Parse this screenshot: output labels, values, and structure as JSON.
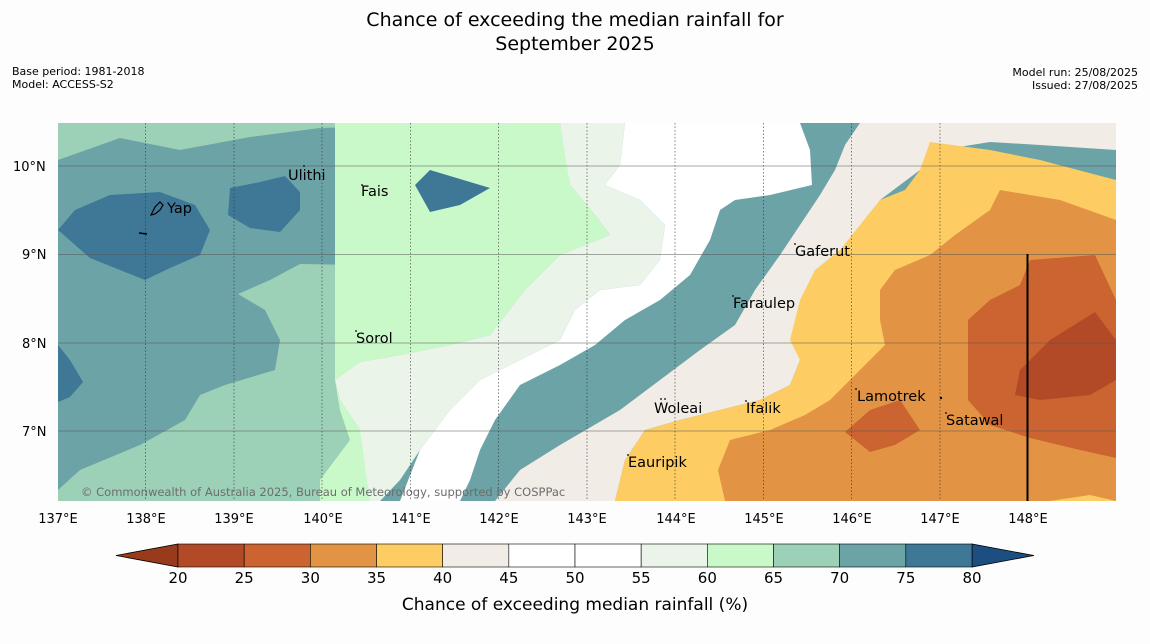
{
  "title_line1": "Chance of exceeding the median rainfall for",
  "title_line2": "September 2025",
  "base_period": "Base period: 1981-2018",
  "model": "Model: ACCESS-S2",
  "model_run": "Model run: 25/08/2025",
  "issued": "Issued: 27/08/2025",
  "copyright": "© Commonwealth of Australia 2025, Bureau of Meteorology, supported by COSPPac",
  "map": {
    "lon_labels": [
      "137°E",
      "138°E",
      "139°E",
      "140°E",
      "141°E",
      "142°E",
      "143°E",
      "144°E",
      "145°E",
      "146°E",
      "147°E",
      "148°E"
    ],
    "lat_labels": [
      "10°N",
      "9°N",
      "8°N",
      "7°N"
    ],
    "places": [
      "Ulithi",
      "Fais",
      "Yap",
      "Gaferut",
      "Faraulep",
      "Sorol",
      "Lamotrek",
      "Woleai",
      "Ifalik",
      "Satawal",
      "Eauripik"
    ]
  },
  "colorbar": {
    "title": "Chance of exceeding median rainfall (%)",
    "ticks": [
      "20",
      "25",
      "30",
      "35",
      "40",
      "45",
      "50",
      "55",
      "60",
      "65",
      "70",
      "75",
      "80"
    ],
    "colors": [
      "#b24a27",
      "#cb6431",
      "#e29444",
      "#fdcc63",
      "#f1ece6",
      "#ffffff",
      "#ffffff",
      "#eaf4e8",
      "#caf9c9",
      "#9dd1b7",
      "#6ba3a6",
      "#3f7896"
    ],
    "extend_low_color": "#9a3a1c",
    "extend_high_color": "#1c4e82"
  }
}
